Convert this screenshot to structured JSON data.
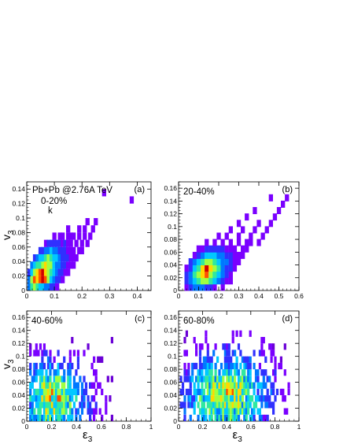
{
  "colors": {
    "axis": "#000000",
    "palette": [
      "#6a00d6",
      "#7a00ff",
      "#3030ff",
      "#0078ff",
      "#00c8ff",
      "#30e8a0",
      "#a0ff40",
      "#ffd800",
      "#ff5000",
      "#d00000"
    ]
  },
  "chart_data": [
    {
      "type": "heatmap",
      "panel": "(a)",
      "title": "Pb+Pb @2.76A TeV",
      "centrality": "0-20%",
      "annotation": "k",
      "xlabel": "",
      "ylabel": "v3",
      "xlim": [
        0,
        0.45
      ],
      "ylim": [
        0,
        0.15
      ],
      "xticks": [
        "0",
        "0.1",
        "0.2",
        "0.3",
        "0.4"
      ],
      "yticks": [
        "0",
        "0.02",
        "0.04",
        "0.06",
        "0.08",
        "0.1",
        "0.12",
        "0.14"
      ],
      "cells": [
        [
          0.01,
          0.005,
          3
        ],
        [
          0.02,
          0.005,
          5
        ],
        [
          0.03,
          0.005,
          6
        ],
        [
          0.04,
          0.005,
          5
        ],
        [
          0.05,
          0.005,
          4
        ],
        [
          0.06,
          0.005,
          4
        ],
        [
          0.07,
          0.005,
          3
        ],
        [
          0.08,
          0.005,
          3
        ],
        [
          0.09,
          0.005,
          2
        ],
        [
          0.1,
          0.005,
          2
        ],
        [
          0.11,
          0.005,
          1
        ],
        [
          0.01,
          0.015,
          3
        ],
        [
          0.02,
          0.015,
          6
        ],
        [
          0.03,
          0.015,
          8
        ],
        [
          0.04,
          0.015,
          7
        ],
        [
          0.05,
          0.015,
          8
        ],
        [
          0.06,
          0.015,
          9
        ],
        [
          0.07,
          0.015,
          8
        ],
        [
          0.08,
          0.015,
          6
        ],
        [
          0.09,
          0.015,
          4
        ],
        [
          0.1,
          0.015,
          3
        ],
        [
          0.11,
          0.015,
          2
        ],
        [
          0.12,
          0.015,
          2
        ],
        [
          0.13,
          0.015,
          1
        ],
        [
          0.01,
          0.025,
          2
        ],
        [
          0.02,
          0.025,
          4
        ],
        [
          0.03,
          0.025,
          6
        ],
        [
          0.04,
          0.025,
          7
        ],
        [
          0.05,
          0.025,
          8
        ],
        [
          0.06,
          0.025,
          9
        ],
        [
          0.07,
          0.025,
          7
        ],
        [
          0.08,
          0.025,
          6
        ],
        [
          0.09,
          0.025,
          5
        ],
        [
          0.1,
          0.025,
          4
        ],
        [
          0.11,
          0.025,
          3
        ],
        [
          0.12,
          0.025,
          2
        ],
        [
          0.13,
          0.025,
          2
        ],
        [
          0.14,
          0.025,
          1
        ],
        [
          0.15,
          0.025,
          1
        ],
        [
          0.02,
          0.035,
          3
        ],
        [
          0.03,
          0.035,
          4
        ],
        [
          0.04,
          0.035,
          5
        ],
        [
          0.05,
          0.035,
          5
        ],
        [
          0.06,
          0.035,
          6
        ],
        [
          0.07,
          0.035,
          7
        ],
        [
          0.08,
          0.035,
          6
        ],
        [
          0.09,
          0.035,
          6
        ],
        [
          0.1,
          0.035,
          4
        ],
        [
          0.11,
          0.035,
          3
        ],
        [
          0.12,
          0.035,
          3
        ],
        [
          0.13,
          0.035,
          2
        ],
        [
          0.14,
          0.035,
          2
        ],
        [
          0.15,
          0.035,
          1
        ],
        [
          0.16,
          0.035,
          1
        ],
        [
          0.17,
          0.035,
          1
        ],
        [
          0.03,
          0.045,
          2
        ],
        [
          0.04,
          0.045,
          3
        ],
        [
          0.05,
          0.045,
          4
        ],
        [
          0.06,
          0.045,
          4
        ],
        [
          0.07,
          0.045,
          5
        ],
        [
          0.08,
          0.045,
          6
        ],
        [
          0.09,
          0.045,
          5
        ],
        [
          0.1,
          0.045,
          4
        ],
        [
          0.11,
          0.045,
          4
        ],
        [
          0.12,
          0.045,
          3
        ],
        [
          0.13,
          0.045,
          2
        ],
        [
          0.14,
          0.045,
          2
        ],
        [
          0.15,
          0.045,
          2
        ],
        [
          0.16,
          0.045,
          1
        ],
        [
          0.17,
          0.045,
          1
        ],
        [
          0.18,
          0.045,
          1
        ],
        [
          0.05,
          0.055,
          2
        ],
        [
          0.06,
          0.055,
          2
        ],
        [
          0.07,
          0.055,
          3
        ],
        [
          0.08,
          0.055,
          3
        ],
        [
          0.09,
          0.055,
          4
        ],
        [
          0.1,
          0.055,
          3
        ],
        [
          0.11,
          0.055,
          3
        ],
        [
          0.12,
          0.055,
          2
        ],
        [
          0.13,
          0.055,
          2
        ],
        [
          0.14,
          0.055,
          2
        ],
        [
          0.15,
          0.055,
          1
        ],
        [
          0.16,
          0.055,
          1
        ],
        [
          0.17,
          0.055,
          1
        ],
        [
          0.19,
          0.055,
          1
        ],
        [
          0.2,
          0.055,
          1
        ],
        [
          0.07,
          0.065,
          1
        ],
        [
          0.08,
          0.065,
          2
        ],
        [
          0.09,
          0.065,
          2
        ],
        [
          0.1,
          0.065,
          2
        ],
        [
          0.11,
          0.065,
          2
        ],
        [
          0.12,
          0.065,
          2
        ],
        [
          0.13,
          0.065,
          1
        ],
        [
          0.14,
          0.065,
          2
        ],
        [
          0.15,
          0.065,
          1
        ],
        [
          0.16,
          0.065,
          1
        ],
        [
          0.18,
          0.065,
          1
        ],
        [
          0.2,
          0.065,
          1
        ],
        [
          0.22,
          0.065,
          1
        ],
        [
          0.1,
          0.075,
          1
        ],
        [
          0.12,
          0.075,
          1
        ],
        [
          0.13,
          0.075,
          1
        ],
        [
          0.15,
          0.075,
          1
        ],
        [
          0.16,
          0.075,
          1
        ],
        [
          0.17,
          0.075,
          1
        ],
        [
          0.19,
          0.075,
          1
        ],
        [
          0.21,
          0.075,
          1
        ],
        [
          0.23,
          0.075,
          1
        ],
        [
          0.15,
          0.085,
          1
        ],
        [
          0.19,
          0.085,
          1
        ],
        [
          0.21,
          0.085,
          1
        ],
        [
          0.24,
          0.085,
          1
        ],
        [
          0.22,
          0.095,
          1
        ],
        [
          0.25,
          0.095,
          1
        ],
        [
          0.38,
          0.125,
          1
        ],
        [
          0.28,
          0.135,
          1
        ]
      ]
    },
    {
      "type": "heatmap",
      "panel": "(b)",
      "title": "",
      "centrality": "20-40%",
      "xlabel": "",
      "ylabel": "",
      "xlim": [
        0,
        0.6
      ],
      "ylim": [
        0,
        0.17
      ],
      "xticks": [
        "0",
        "0.1",
        "0.2",
        "0.3",
        "0.4",
        "0.5",
        "0.6"
      ],
      "yticks": [
        "0",
        "0.02",
        "0.04",
        "0.06",
        "0.08",
        "0.1",
        "0.12",
        "0.14",
        "0.16"
      ],
      "cells": [
        [
          0.04,
          0.005,
          1
        ],
        [
          0.06,
          0.005,
          2
        ],
        [
          0.08,
          0.005,
          3
        ],
        [
          0.1,
          0.005,
          3
        ],
        [
          0.12,
          0.005,
          3
        ],
        [
          0.14,
          0.005,
          2
        ],
        [
          0.16,
          0.005,
          2
        ],
        [
          0.18,
          0.005,
          1
        ],
        [
          0.22,
          0.005,
          1
        ],
        [
          0.04,
          0.015,
          2
        ],
        [
          0.06,
          0.015,
          3
        ],
        [
          0.08,
          0.015,
          4
        ],
        [
          0.1,
          0.015,
          5
        ],
        [
          0.12,
          0.015,
          6
        ],
        [
          0.14,
          0.015,
          6
        ],
        [
          0.16,
          0.015,
          5
        ],
        [
          0.18,
          0.015,
          4
        ],
        [
          0.2,
          0.015,
          3
        ],
        [
          0.22,
          0.015,
          2
        ],
        [
          0.24,
          0.015,
          1
        ],
        [
          0.26,
          0.015,
          1
        ],
        [
          0.04,
          0.025,
          2
        ],
        [
          0.06,
          0.025,
          3
        ],
        [
          0.08,
          0.025,
          5
        ],
        [
          0.1,
          0.025,
          6
        ],
        [
          0.12,
          0.025,
          7
        ],
        [
          0.14,
          0.025,
          8
        ],
        [
          0.16,
          0.025,
          6
        ],
        [
          0.18,
          0.025,
          5
        ],
        [
          0.2,
          0.025,
          4
        ],
        [
          0.22,
          0.025,
          3
        ],
        [
          0.24,
          0.025,
          2
        ],
        [
          0.26,
          0.025,
          1
        ],
        [
          0.04,
          0.035,
          1
        ],
        [
          0.06,
          0.035,
          2
        ],
        [
          0.08,
          0.035,
          4
        ],
        [
          0.1,
          0.035,
          5
        ],
        [
          0.12,
          0.035,
          7
        ],
        [
          0.14,
          0.035,
          9
        ],
        [
          0.16,
          0.035,
          7
        ],
        [
          0.18,
          0.035,
          6
        ],
        [
          0.2,
          0.035,
          5
        ],
        [
          0.22,
          0.035,
          3
        ],
        [
          0.24,
          0.035,
          2
        ],
        [
          0.26,
          0.035,
          2
        ],
        [
          0.28,
          0.035,
          1
        ],
        [
          0.06,
          0.045,
          2
        ],
        [
          0.08,
          0.045,
          3
        ],
        [
          0.1,
          0.045,
          4
        ],
        [
          0.12,
          0.045,
          5
        ],
        [
          0.14,
          0.045,
          6
        ],
        [
          0.16,
          0.045,
          6
        ],
        [
          0.18,
          0.045,
          5
        ],
        [
          0.2,
          0.045,
          4
        ],
        [
          0.22,
          0.045,
          3
        ],
        [
          0.24,
          0.045,
          3
        ],
        [
          0.26,
          0.045,
          2
        ],
        [
          0.28,
          0.045,
          1
        ],
        [
          0.3,
          0.045,
          1
        ],
        [
          0.08,
          0.055,
          1
        ],
        [
          0.1,
          0.055,
          2
        ],
        [
          0.12,
          0.055,
          3
        ],
        [
          0.14,
          0.055,
          4
        ],
        [
          0.16,
          0.055,
          4
        ],
        [
          0.18,
          0.055,
          4
        ],
        [
          0.2,
          0.055,
          3
        ],
        [
          0.22,
          0.055,
          3
        ],
        [
          0.24,
          0.055,
          2
        ],
        [
          0.26,
          0.055,
          2
        ],
        [
          0.28,
          0.055,
          1
        ],
        [
          0.3,
          0.055,
          1
        ],
        [
          0.32,
          0.055,
          1
        ],
        [
          0.1,
          0.065,
          1
        ],
        [
          0.12,
          0.065,
          1
        ],
        [
          0.14,
          0.065,
          2
        ],
        [
          0.16,
          0.065,
          2
        ],
        [
          0.18,
          0.065,
          2
        ],
        [
          0.2,
          0.065,
          2
        ],
        [
          0.22,
          0.065,
          2
        ],
        [
          0.24,
          0.065,
          1
        ],
        [
          0.26,
          0.065,
          1
        ],
        [
          0.28,
          0.065,
          1
        ],
        [
          0.32,
          0.065,
          1
        ],
        [
          0.34,
          0.065,
          1
        ],
        [
          0.14,
          0.075,
          1
        ],
        [
          0.18,
          0.075,
          1
        ],
        [
          0.22,
          0.075,
          1
        ],
        [
          0.26,
          0.075,
          1
        ],
        [
          0.3,
          0.075,
          1
        ],
        [
          0.34,
          0.075,
          1
        ],
        [
          0.36,
          0.075,
          1
        ],
        [
          0.4,
          0.075,
          1
        ],
        [
          0.2,
          0.085,
          1
        ],
        [
          0.24,
          0.085,
          1
        ],
        [
          0.3,
          0.085,
          1
        ],
        [
          0.36,
          0.085,
          1
        ],
        [
          0.42,
          0.085,
          1
        ],
        [
          0.26,
          0.095,
          1
        ],
        [
          0.32,
          0.095,
          1
        ],
        [
          0.38,
          0.095,
          1
        ],
        [
          0.44,
          0.095,
          1
        ],
        [
          0.3,
          0.105,
          1
        ],
        [
          0.4,
          0.105,
          1
        ],
        [
          0.46,
          0.105,
          1
        ],
        [
          0.34,
          0.115,
          1
        ],
        [
          0.48,
          0.115,
          1
        ],
        [
          0.5,
          0.125,
          1
        ],
        [
          0.38,
          0.125,
          1
        ],
        [
          0.52,
          0.135,
          1
        ],
        [
          0.46,
          0.145,
          1
        ],
        [
          0.54,
          0.145,
          1
        ]
      ]
    },
    {
      "type": "heatmap",
      "panel": "(c)",
      "title": "",
      "centrality": "40-60%",
      "xlabel": "ε3",
      "ylabel": "v3",
      "xlim": [
        0,
        1
      ],
      "ylim": [
        0,
        0.17
      ],
      "xticks": [
        "0",
        "0.2",
        "0.4",
        "0.6",
        "0.8",
        "1"
      ],
      "yticks": [
        "0",
        "0.02",
        "0.04",
        "0.06",
        "0.08",
        "0.1",
        "0.12",
        "0.14",
        "0.16"
      ],
      "xrange": [
        0.03,
        0.7
      ],
      "ymaxcell": 0.125,
      "peak": [
        0.22,
        0.035
      ]
    },
    {
      "type": "heatmap",
      "panel": "(d)",
      "title": "",
      "centrality": "60-80%",
      "xlabel": "ε3",
      "ylabel": "",
      "xlim": [
        0,
        1
      ],
      "ylim": [
        0,
        0.17
      ],
      "xticks": [
        "0",
        "0.2",
        "0.4",
        "0.6",
        "0.8",
        "1"
      ],
      "yticks": [
        "0",
        "0.02",
        "0.04",
        "0.06",
        "0.08",
        "0.1",
        "0.12",
        "0.14",
        "0.16"
      ],
      "xrange": [
        0.02,
        0.93
      ],
      "ymaxcell": 0.135,
      "peak": [
        0.4,
        0.04
      ]
    }
  ]
}
